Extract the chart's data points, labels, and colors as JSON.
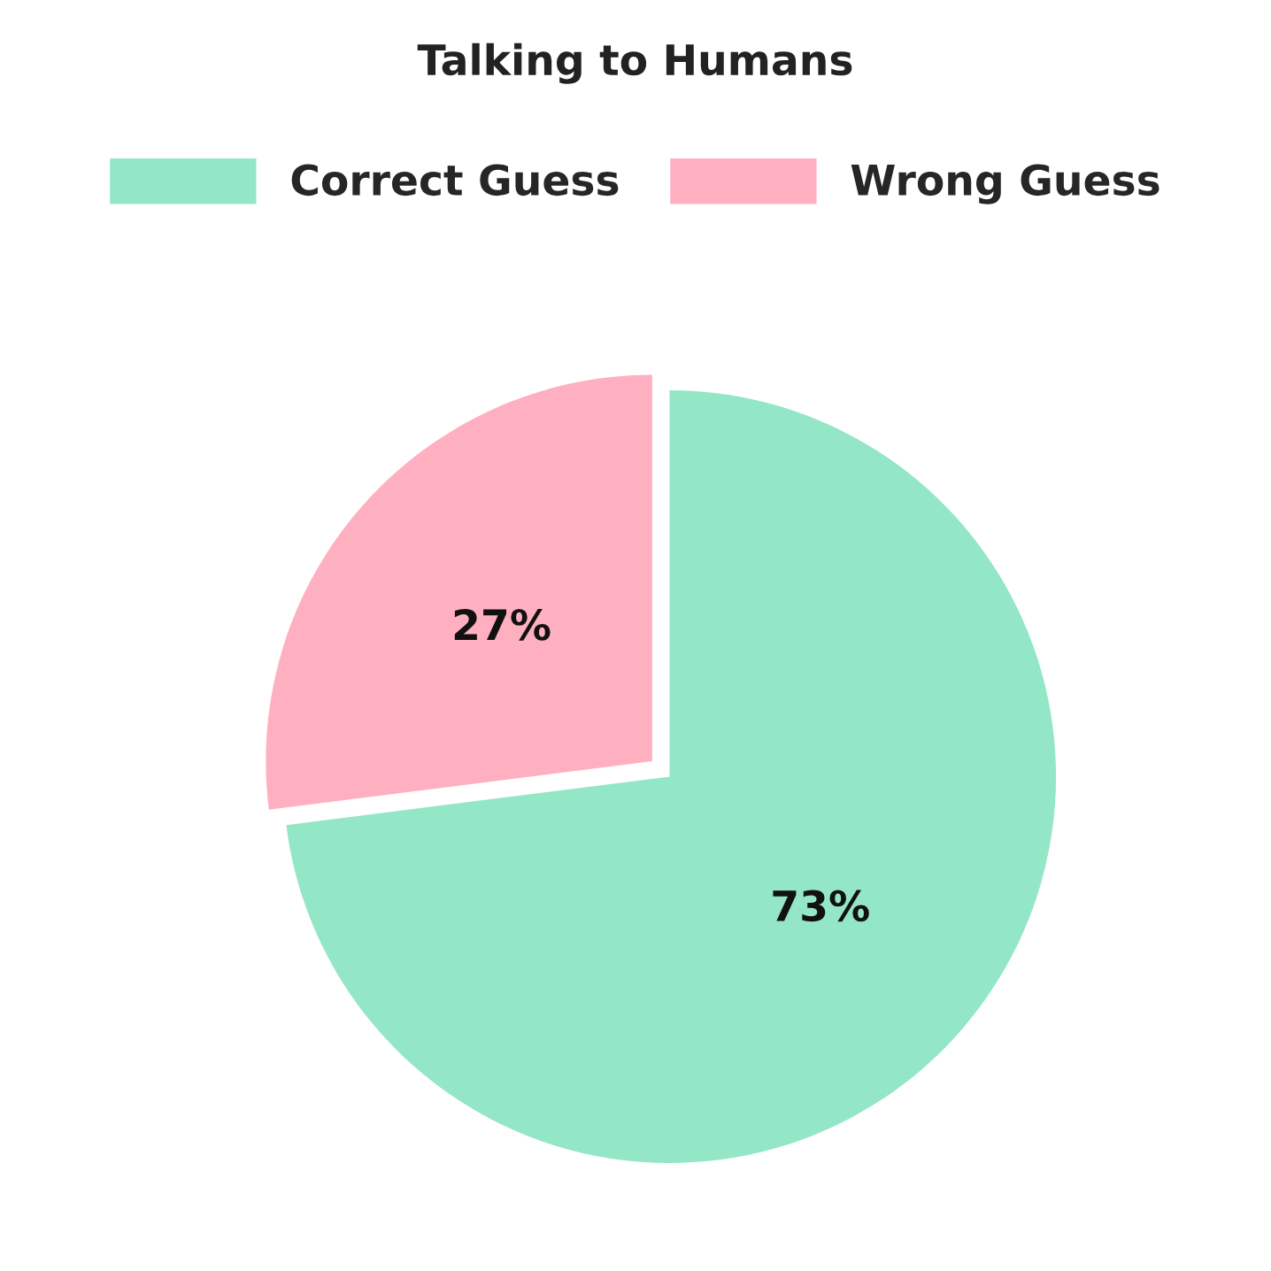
{
  "chart_data": {
    "type": "pie",
    "title": "Talking to Humans",
    "categories": [
      "Correct Guess",
      "Wrong Guess"
    ],
    "values": [
      73,
      27
    ],
    "colors": [
      "#93e6c6",
      "#ffb0c0"
    ],
    "value_labels": [
      "73%",
      "27%"
    ],
    "legend": "top"
  }
}
